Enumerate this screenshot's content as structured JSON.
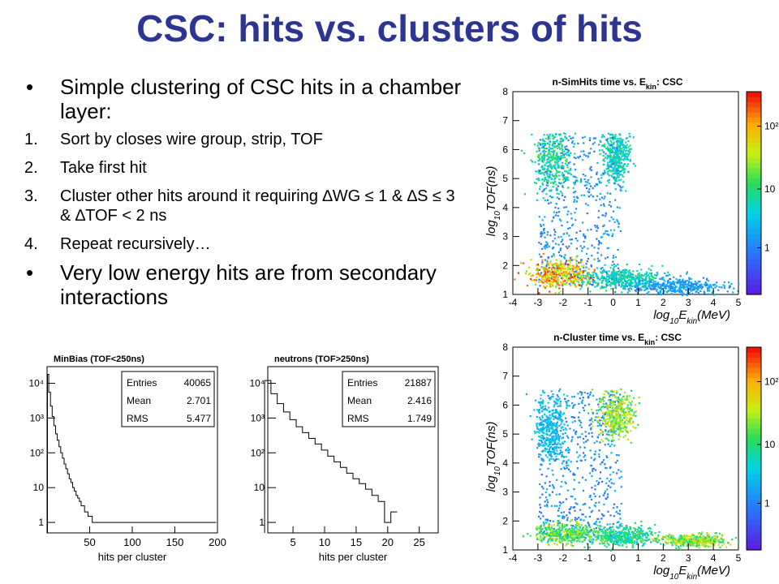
{
  "slide": {
    "title": "CSC: hits vs. clusters of hits",
    "bullets": [
      {
        "text": "Simple clustering of CSC hits in a chamber layer:",
        "sub": [
          {
            "num": "1.",
            "text": "Sort by closes wire group, strip, TOF"
          },
          {
            "num": "2.",
            "text": "Take first hit"
          },
          {
            "num": "3.",
            "text": "Cluster other hits around it requiring ∆WG ≤ 1 & ∆S ≤ 3 & ∆TOF < 2 ns"
          },
          {
            "num": "4.",
            "text": "Repeat recursively…"
          }
        ]
      },
      {
        "text": "Very low energy hits are from secondary interactions",
        "sub": []
      }
    ],
    "bullet_symbol": "•"
  },
  "chart_data": [
    {
      "type": "line",
      "title": "MinBias (TOF<250ns)",
      "xlabel": "hits per cluster",
      "ylabel": "",
      "log_y": true,
      "xlim": [
        0,
        200
      ],
      "ylim": [
        0.5,
        30000
      ],
      "xticks": [
        "50",
        "100",
        "150",
        "200"
      ],
      "yticks": [
        {
          "v": 1,
          "label": "1"
        },
        {
          "v": 10,
          "label": "10"
        },
        {
          "v": 100,
          "label": "10²"
        },
        {
          "v": 1000,
          "label": "10³"
        },
        {
          "v": 10000,
          "label": "10⁴"
        }
      ],
      "stats": [
        [
          "Entries",
          "40065"
        ],
        [
          "Mean",
          "2.701"
        ],
        [
          "RMS",
          "5.477"
        ]
      ],
      "series": [
        {
          "x": [
            1,
            3,
            5,
            7,
            9,
            11,
            13,
            15,
            17,
            19,
            21,
            23,
            25,
            27,
            29,
            31,
            33,
            35,
            37,
            39,
            41,
            43,
            45,
            47,
            49,
            51,
            55,
            60,
            65,
            70,
            75,
            80,
            85,
            90,
            95,
            100,
            105,
            110,
            115,
            120,
            130,
            140,
            150,
            160,
            170,
            180,
            190,
            198
          ],
          "values": [
            18000,
            5500,
            2200,
            1100,
            600,
            350,
            230,
            150,
            100,
            70,
            48,
            35,
            25,
            18,
            14,
            10,
            8,
            6,
            5,
            4,
            3,
            3,
            2,
            2,
            1.5,
            1.5,
            1,
            1,
            1,
            1,
            1,
            1,
            1,
            1,
            1,
            1,
            1,
            1,
            1,
            1,
            1,
            1,
            1,
            1,
            1,
            1,
            1,
            1
          ]
        }
      ]
    },
    {
      "type": "line",
      "title": "neutrons (TOF>250ns)",
      "xlabel": "hits per cluster",
      "ylabel": "",
      "log_y": true,
      "xlim": [
        1,
        28
      ],
      "ylim": [
        0.5,
        30000
      ],
      "xticks": [
        "5",
        "10",
        "15",
        "20",
        "25"
      ],
      "yticks": [
        {
          "v": 1,
          "label": "1"
        },
        {
          "v": 10,
          "label": "10"
        },
        {
          "v": 100,
          "label": "10²"
        },
        {
          "v": 1000,
          "label": "10³"
        },
        {
          "v": 10000,
          "label": "10⁴"
        }
      ],
      "stats": [
        [
          "Entries",
          "21887"
        ],
        [
          "Mean",
          "2.416"
        ],
        [
          "RMS",
          "1.749"
        ]
      ],
      "series": [
        {
          "x": [
            1,
            2,
            3,
            4,
            5,
            6,
            7,
            8,
            9,
            10,
            11,
            12,
            13,
            14,
            15,
            16,
            17,
            18,
            19,
            20,
            21
          ],
          "values": [
            12000,
            5000,
            2600,
            1500,
            900,
            560,
            380,
            260,
            180,
            120,
            80,
            55,
            38,
            26,
            18,
            13,
            9,
            6,
            4,
            1,
            2
          ]
        }
      ]
    },
    {
      "type": "heatmap",
      "title": "n-SimHits time vs. E",
      "title_sub": "kin",
      "title_tail": ": CSC",
      "xlabel": "log",
      "xlabel_sub": "10",
      "xlabel_mid": "E",
      "xlabel_sub2": "kin",
      "xlabel_tail": "(MeV)",
      "ylabel": "log",
      "ylabel_sub": "10",
      "ylabel_tail": "TOF(ns)",
      "xlim": [
        -4,
        5
      ],
      "ylim": [
        1,
        8
      ],
      "xticks": [
        "-4",
        "-3",
        "-2",
        "-1",
        "0",
        "1",
        "2",
        "3",
        "4",
        "5"
      ],
      "yticks": [
        "1",
        "2",
        "3",
        "4",
        "5",
        "6",
        "7",
        "8"
      ],
      "colorbar": [
        "1",
        "10",
        "10²"
      ],
      "blobs": [
        {
          "x": -2.3,
          "y": 1.75,
          "sx": 0.9,
          "sy": 0.35,
          "z": 1.0
        },
        {
          "x": -2.5,
          "y": 5.7,
          "sx": 0.6,
          "sy": 0.8,
          "z": 0.6
        },
        {
          "x": 0.1,
          "y": 5.8,
          "sx": 0.4,
          "sy": 0.6,
          "z": 0.55
        },
        {
          "x": 0.3,
          "y": 1.6,
          "sx": 1.1,
          "sy": 0.25,
          "z": 0.55
        },
        {
          "x": 2.5,
          "y": 1.3,
          "sx": 1.4,
          "sy": 0.2,
          "z": 0.35
        }
      ]
    },
    {
      "type": "heatmap",
      "title": "n-Cluster time vs. E",
      "title_sub": "kin",
      "title_tail": ": CSC",
      "xlabel": "log",
      "xlabel_sub": "10",
      "xlabel_mid": "E",
      "xlabel_sub2": "kin",
      "xlabel_tail": "(MeV)",
      "ylabel": "log",
      "ylabel_sub": "10",
      "ylabel_tail": "TOF(ns)",
      "xlim": [
        -4,
        5
      ],
      "ylim": [
        1,
        8
      ],
      "xticks": [
        "-4",
        "-3",
        "-2",
        "-1",
        "0",
        "1",
        "2",
        "3",
        "4",
        "5"
      ],
      "yticks": [
        "1",
        "2",
        "3",
        "4",
        "5",
        "6",
        "7",
        "8"
      ],
      "colorbar": [
        "1",
        "10",
        "10²"
      ],
      "blobs": [
        {
          "x": -2.0,
          "y": 1.6,
          "sx": 1.1,
          "sy": 0.25,
          "z": 0.75
        },
        {
          "x": 0.1,
          "y": 5.7,
          "sx": 0.5,
          "sy": 0.6,
          "z": 0.8
        },
        {
          "x": -2.5,
          "y": 5.2,
          "sx": 0.5,
          "sy": 0.9,
          "z": 0.45
        },
        {
          "x": 0.3,
          "y": 1.5,
          "sx": 1.0,
          "sy": 0.25,
          "z": 0.6
        },
        {
          "x": 3.2,
          "y": 1.35,
          "sx": 1.0,
          "sy": 0.15,
          "z": 0.8
        }
      ]
    }
  ]
}
